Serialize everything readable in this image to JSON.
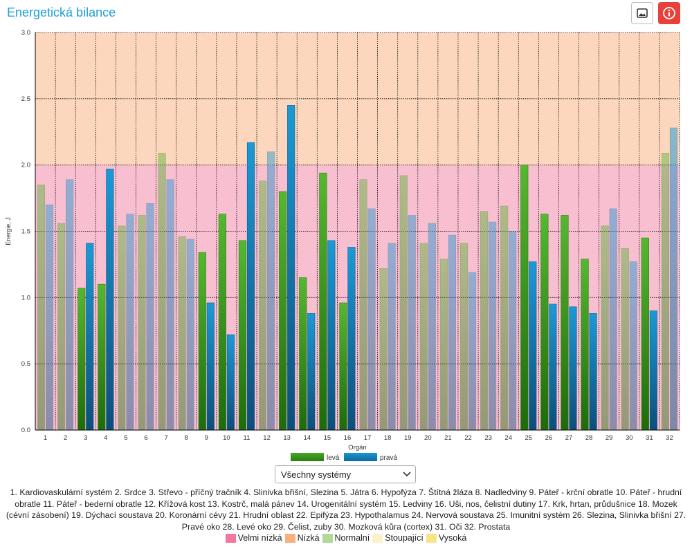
{
  "header": {
    "title": "Energetická bilance",
    "image_button_icon": "image-icon",
    "info_button_icon": "info-icon"
  },
  "colors": {
    "levá": "#3f9e1f",
    "pravá": "#1585c0",
    "zone_low": "#f8bfd1",
    "zone_high": "#fcd7bd",
    "title": "#1e9fd6",
    "info_button": "#e8403a"
  },
  "chart_data": {
    "type": "bar",
    "title": "",
    "xlabel": "Orgán",
    "ylabel": "Energie, J",
    "ylim": [
      0,
      3.0
    ],
    "yticks": [
      "0.0",
      "0.5",
      "1.0",
      "1.5",
      "2.0",
      "2.5",
      "3.0"
    ],
    "categories": [
      "1",
      "2",
      "3",
      "4",
      "5",
      "6",
      "7",
      "8",
      "9",
      "10",
      "11",
      "12",
      "13",
      "14",
      "15",
      "16",
      "17",
      "18",
      "19",
      "20",
      "21",
      "22",
      "23",
      "24",
      "25",
      "26",
      "27",
      "28",
      "29",
      "30",
      "31",
      "32"
    ],
    "series": [
      {
        "name": "levá",
        "values": [
          1.85,
          1.56,
          1.07,
          1.1,
          1.54,
          1.62,
          2.09,
          1.46,
          1.34,
          1.63,
          1.43,
          1.88,
          1.8,
          1.15,
          1.94,
          0.96,
          1.89,
          1.22,
          1.92,
          1.41,
          1.29,
          1.41,
          1.65,
          1.69,
          2.0,
          1.63,
          1.62,
          1.29,
          1.54,
          1.37,
          1.45,
          2.09
        ]
      },
      {
        "name": "pravá",
        "values": [
          1.7,
          1.89,
          1.41,
          1.97,
          1.63,
          1.71,
          1.89,
          1.44,
          0.96,
          0.72,
          2.17,
          2.1,
          2.45,
          0.88,
          1.43,
          1.38,
          1.67,
          1.41,
          1.62,
          1.56,
          1.47,
          1.19,
          1.57,
          1.5,
          1.27,
          0.95,
          0.93,
          0.88,
          1.67,
          1.27,
          0.9,
          2.28
        ]
      }
    ],
    "zones": [
      {
        "from": 0,
        "to": 2.0,
        "color": "#f8bfd1"
      },
      {
        "from": 2.0,
        "to": 3.0,
        "color": "#fcd7bd"
      }
    ],
    "grid": true,
    "legend": "bottom-center"
  },
  "filter": {
    "selected": "Všechny systémy"
  },
  "organ_list": [
    "1. Kardiovaskulární systém",
    "2. Srdce",
    "3. Střevo - příčný tračník",
    "4. Slinivka břišní, Slezina",
    "5. Játra",
    "6. Hypofýza",
    "7. Štítná žláza",
    "8. Nadledviny",
    "9. Páteř - krční obratle",
    "10. Páteř - hrudní obratle",
    "11. Páteř - bederní obratle",
    "12. Křížová kost",
    "13. Kostrč, malá pánev",
    "14. Urogenitální systém",
    "15. Ledviny",
    "16. Uši, nos, čelistní dutiny",
    "17. Krk, hrtan, průdušnice",
    "18. Mozek (cévní zásobení)",
    "19. Dýchací soustava",
    "20. Koronární cévy",
    "21. Hrudní oblast",
    "22. Epifýza",
    "23. Hypothalamus",
    "24. Nervová soustava",
    "25. Imunitní systém",
    "26. Slezina, Slinivka břišní",
    "27. Pravé oko",
    "28. Levé oko",
    "29. Čelist, zuby",
    "30. Mozková kůra (cortex)",
    "31. Oči",
    "32. Prostata"
  ],
  "status_legend": [
    {
      "label": "Velmi nízká",
      "color": "#f2779f"
    },
    {
      "label": "Nízká",
      "color": "#f9b07e"
    },
    {
      "label": "Normalní",
      "color": "#b2d89a"
    },
    {
      "label": "Stoupající",
      "color": "#fbf2cc"
    },
    {
      "label": "Vysoká",
      "color": "#f7e486"
    }
  ]
}
